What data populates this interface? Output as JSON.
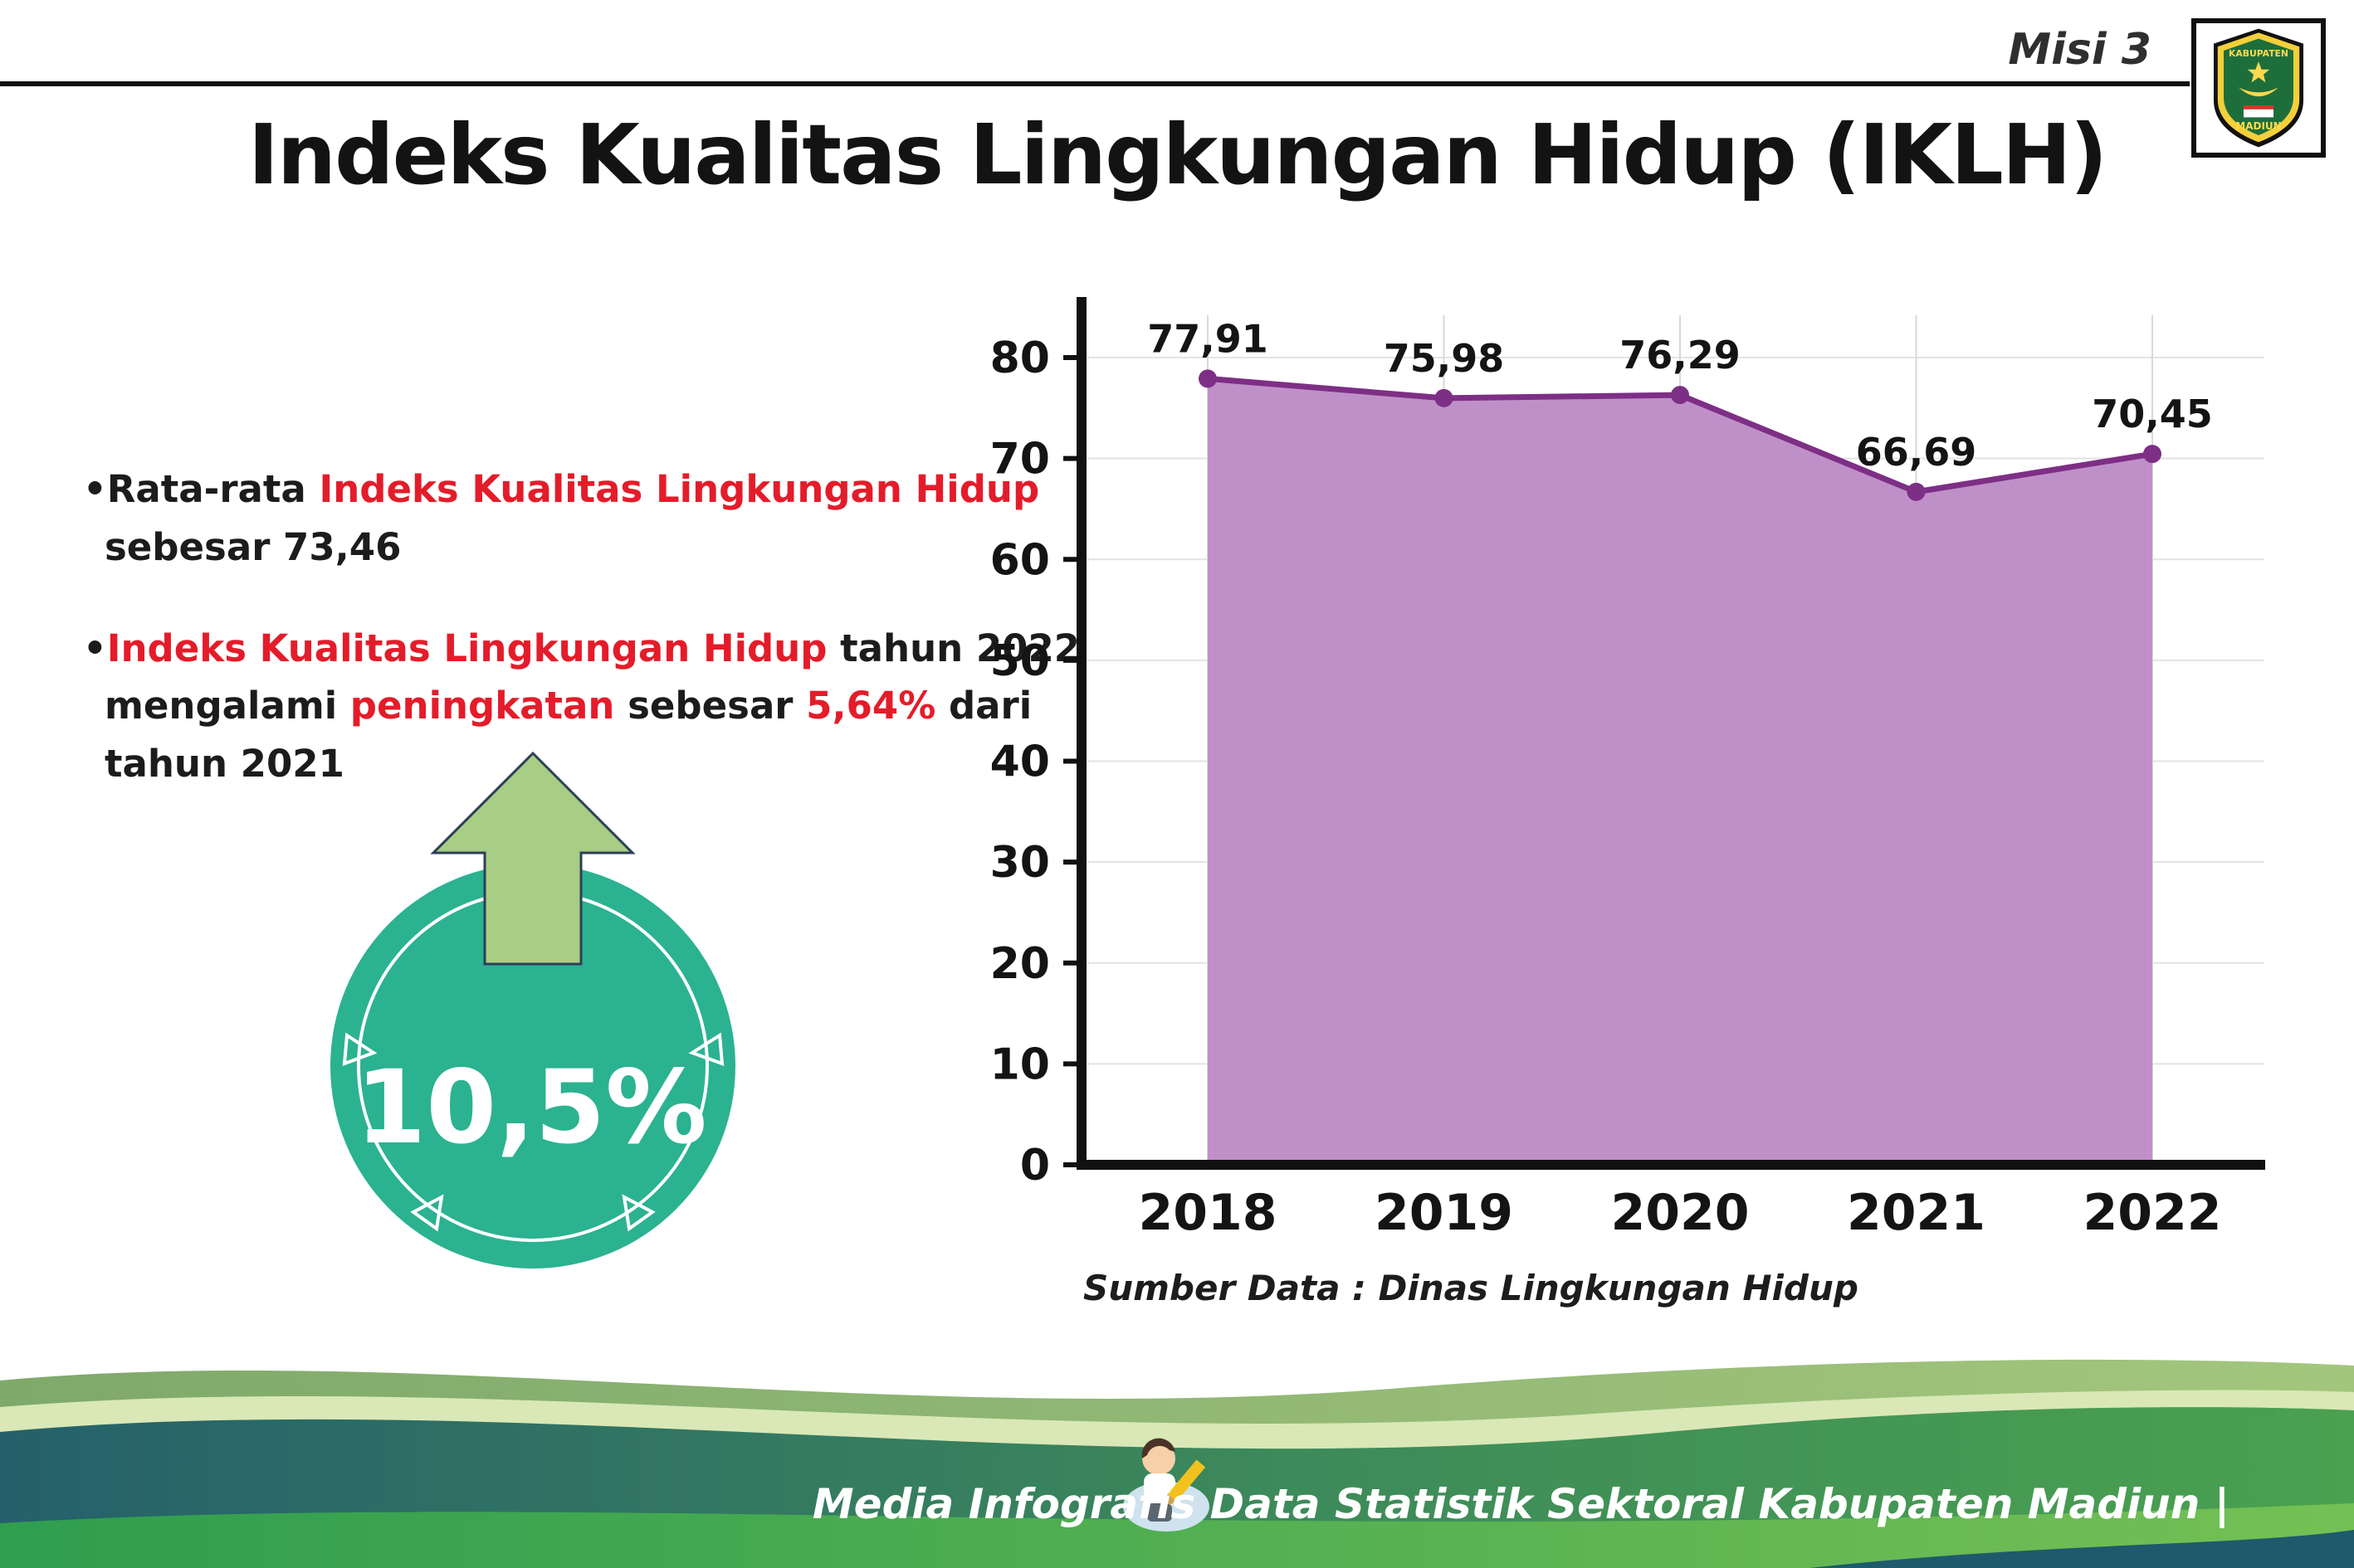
{
  "page": {
    "misi_label": "Misi 3",
    "title": "Indeks Kualitas Lingkungan Hidup (IKLH)"
  },
  "logo": {
    "top_text": "KABUPATEN",
    "bottom_text": "MADIUN"
  },
  "bullets": {
    "dot": "•",
    "b1": {
      "s1": "Rata-rata ",
      "s2": "Indeks Kualitas Lingkungan Hidup",
      "s3": "sebesar 73,46"
    },
    "b2": {
      "s1": "Indeks Kualitas Lingkungan Hidup",
      "s2": " tahun 2022",
      "s3": "mengalami ",
      "s4": "peningkatan",
      "s5": " sebesar ",
      "s6": "5,64%",
      "s7": " dari",
      "s8": "tahun 2021"
    }
  },
  "increase_badge": {
    "value": "10,5%"
  },
  "chart_data": {
    "type": "area",
    "categories": [
      "2018",
      "2019",
      "2020",
      "2021",
      "2022"
    ],
    "values": [
      77.91,
      75.98,
      76.29,
      66.69,
      70.45
    ],
    "point_labels": [
      "77,91",
      "75,98",
      "76,29",
      "66,69",
      "70,45"
    ],
    "ylim": [
      0,
      80
    ],
    "yticks": [
      0,
      10,
      20,
      30,
      40,
      50,
      60,
      70,
      80
    ],
    "xlabel": "",
    "ylabel": "",
    "grid": true,
    "legend": false,
    "fill_color": "#bf90c8",
    "line_color": "#7d2f86",
    "source_note": "Sumber Data : Dinas Lingkungan Hidup"
  },
  "footer": {
    "credit": "Media Infografis Data Statistik Sektoral Kabupaten Madiun |"
  },
  "colors": {
    "accent_red": "#e41c2a",
    "badge_teal": "#2bb291",
    "arrow_green": "#a8cd84",
    "footer_dark": "#25606b",
    "footer_green": "#4aa14f"
  }
}
